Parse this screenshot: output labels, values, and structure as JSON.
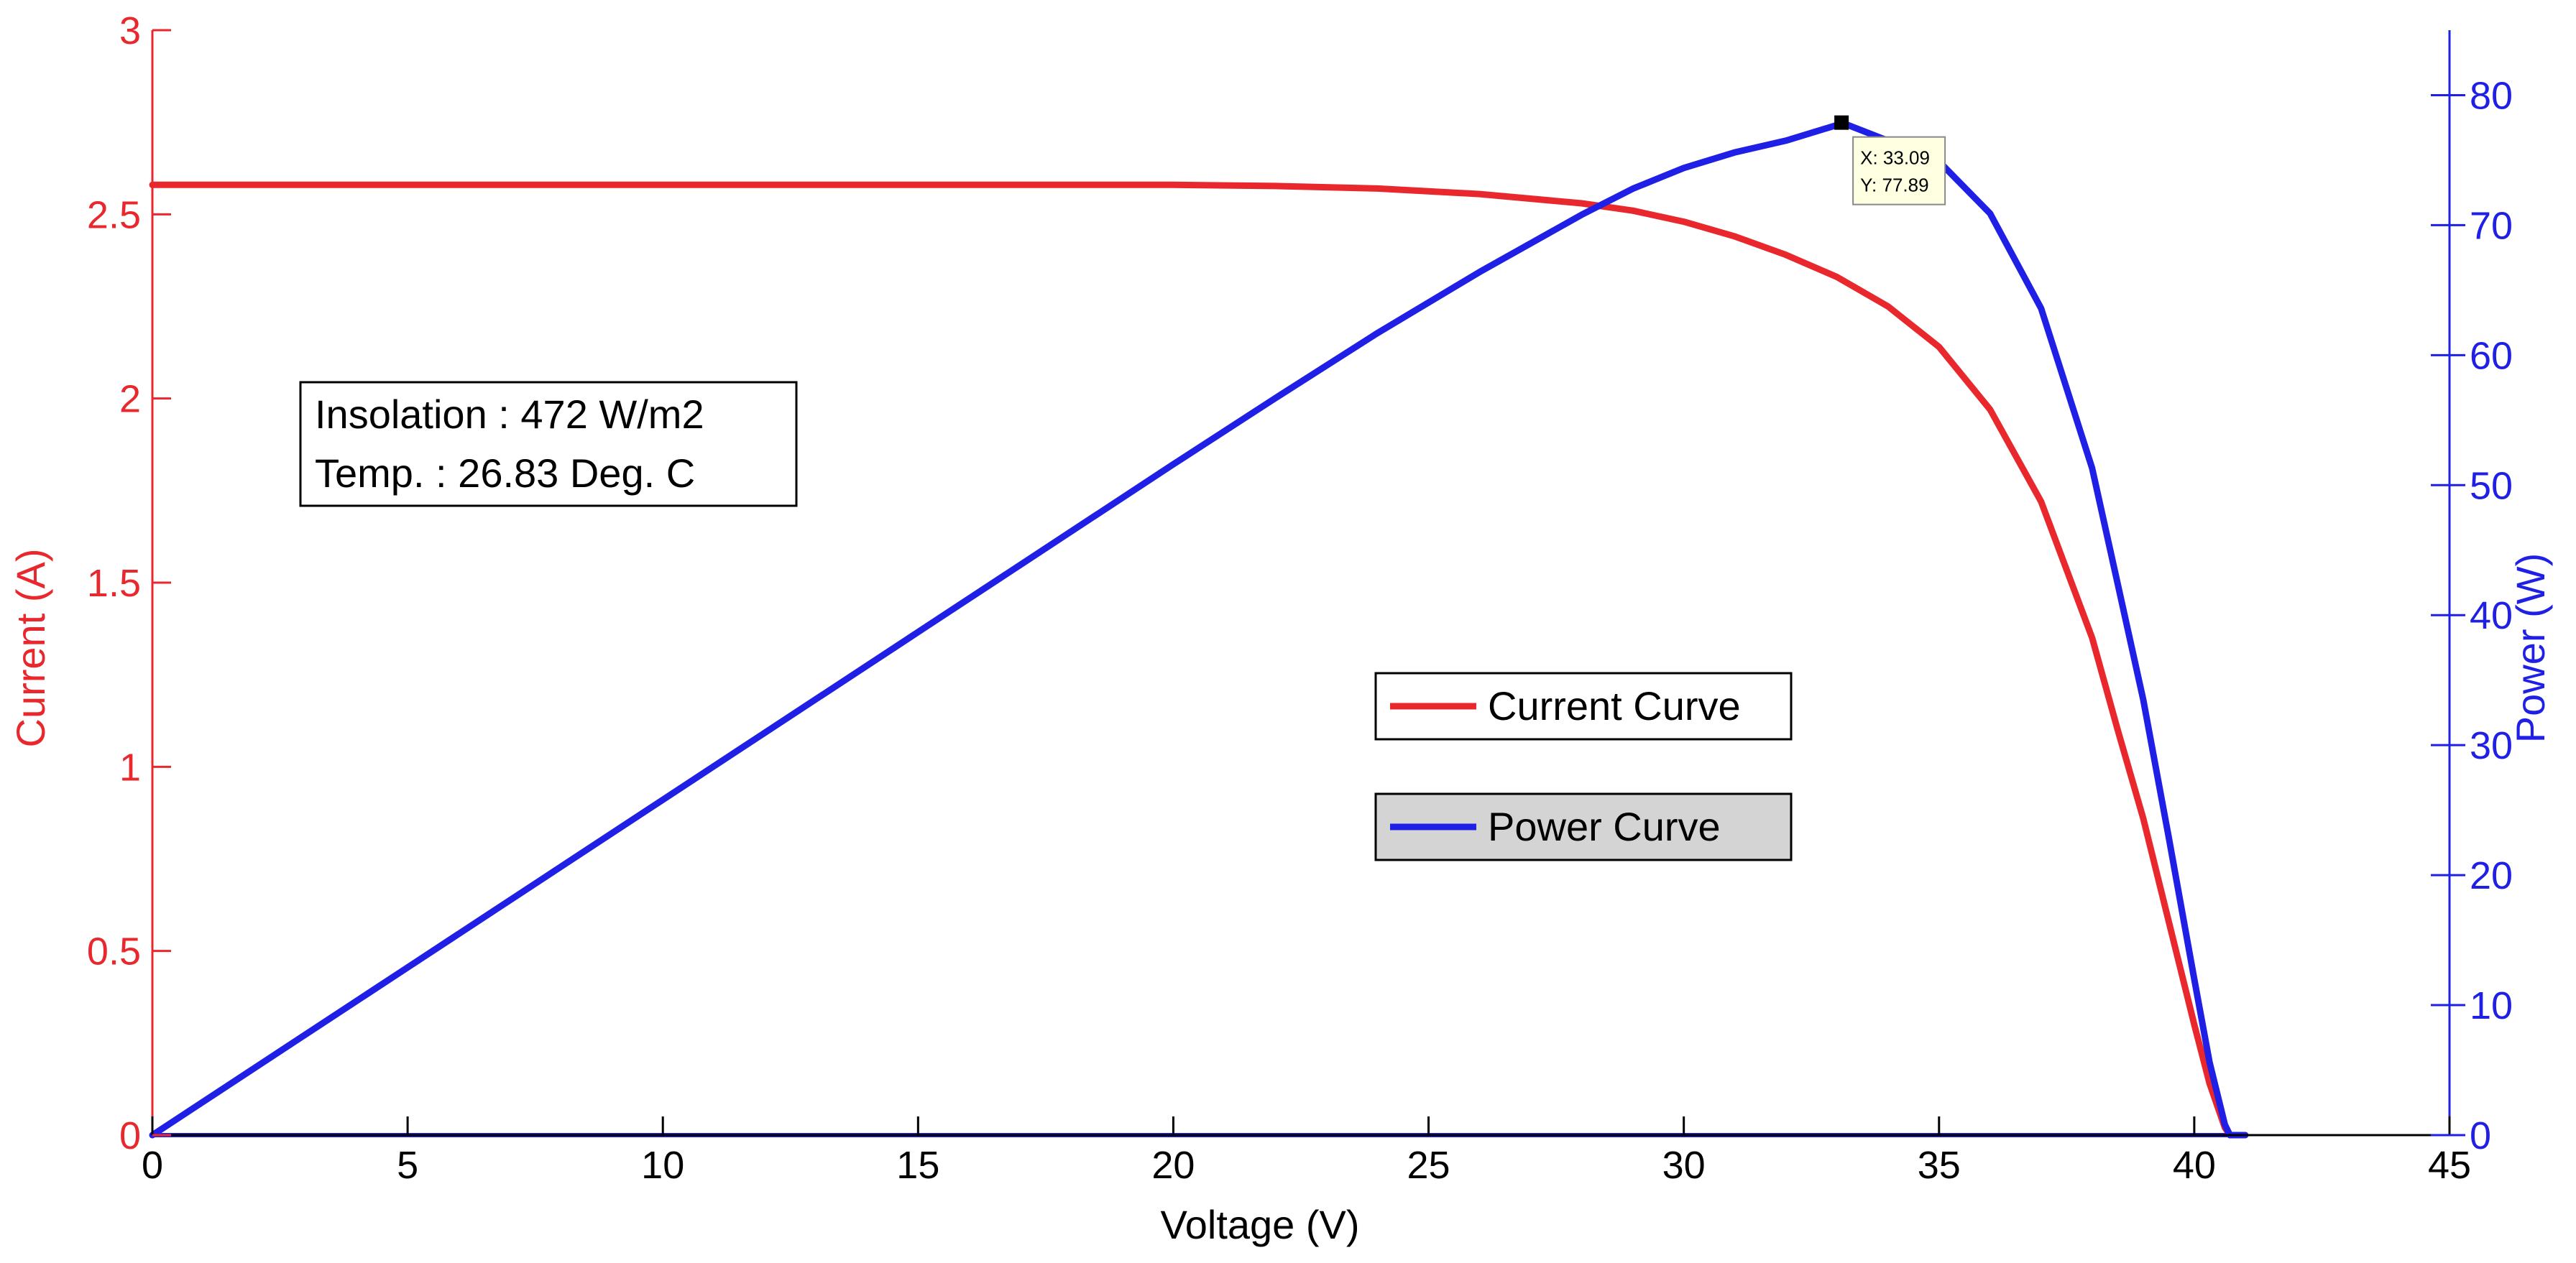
{
  "chart_data": {
    "type": "line",
    "xlabel": "Voltage (V)",
    "ylabel_left": "Current (A)",
    "ylabel_right": "Power (W)",
    "xlim": [
      0,
      45
    ],
    "ylim_left": [
      0,
      3
    ],
    "ylim_right": [
      0,
      85
    ],
    "x_ticks": [
      0,
      5,
      10,
      15,
      20,
      25,
      30,
      35,
      40,
      45
    ],
    "y_left_ticks": [
      0,
      0.5,
      1,
      1.5,
      2,
      2.5,
      3
    ],
    "y_right_ticks": [
      0,
      10,
      20,
      30,
      40,
      50,
      60,
      70,
      80
    ],
    "grid": false,
    "colors": {
      "current": "#e8282d",
      "power": "#1f1fe6",
      "left_axis": "#e8282d",
      "right_axis": "#1f1fe6",
      "bottom_axis": "#000000"
    },
    "series": [
      {
        "name": "Current Curve",
        "axis": "left",
        "x": [
          0,
          5,
          10,
          15,
          20,
          22,
          24,
          26,
          28,
          29,
          30,
          31,
          32,
          33,
          34,
          35,
          36,
          37,
          38,
          38.5,
          39,
          39.5,
          40,
          40.3,
          40.6,
          40.7,
          41
        ],
        "y": [
          2.58,
          2.58,
          2.58,
          2.58,
          2.58,
          2.577,
          2.57,
          2.555,
          2.53,
          2.51,
          2.48,
          2.44,
          2.39,
          2.33,
          2.25,
          2.14,
          1.97,
          1.72,
          1.35,
          1.1,
          0.86,
          0.58,
          0.3,
          0.14,
          0.02,
          0,
          0
        ]
      },
      {
        "name": "Power Curve",
        "axis": "right",
        "x": [
          0,
          5,
          10,
          15,
          20,
          22,
          24,
          26,
          28,
          29,
          30,
          31,
          32,
          33,
          33.09,
          34,
          35,
          36,
          37,
          38,
          38.5,
          39,
          39.5,
          40,
          40.3,
          40.6,
          40.7,
          41
        ],
        "y": [
          0,
          12.9,
          25.8,
          38.7,
          51.6,
          56.7,
          61.7,
          66.4,
          70.8,
          72.8,
          74.4,
          75.6,
          76.5,
          77.7,
          77.89,
          76.5,
          74.9,
          70.9,
          63.6,
          51.3,
          42.4,
          33.5,
          22.9,
          12.0,
          5.6,
          0.8,
          0,
          0
        ]
      }
    ],
    "legend": {
      "position": "center-right",
      "entries": [
        "Current Curve",
        "Power Curve"
      ]
    },
    "annotations": {
      "info_lines": [
        "Insolation : 472 W/m2",
        "Temp. : 26.83 Deg. C"
      ],
      "datatip": {
        "x": 33.09,
        "y": 77.89,
        "line_x": "X: 33.09",
        "line_y": "Y: 77.89"
      }
    }
  }
}
